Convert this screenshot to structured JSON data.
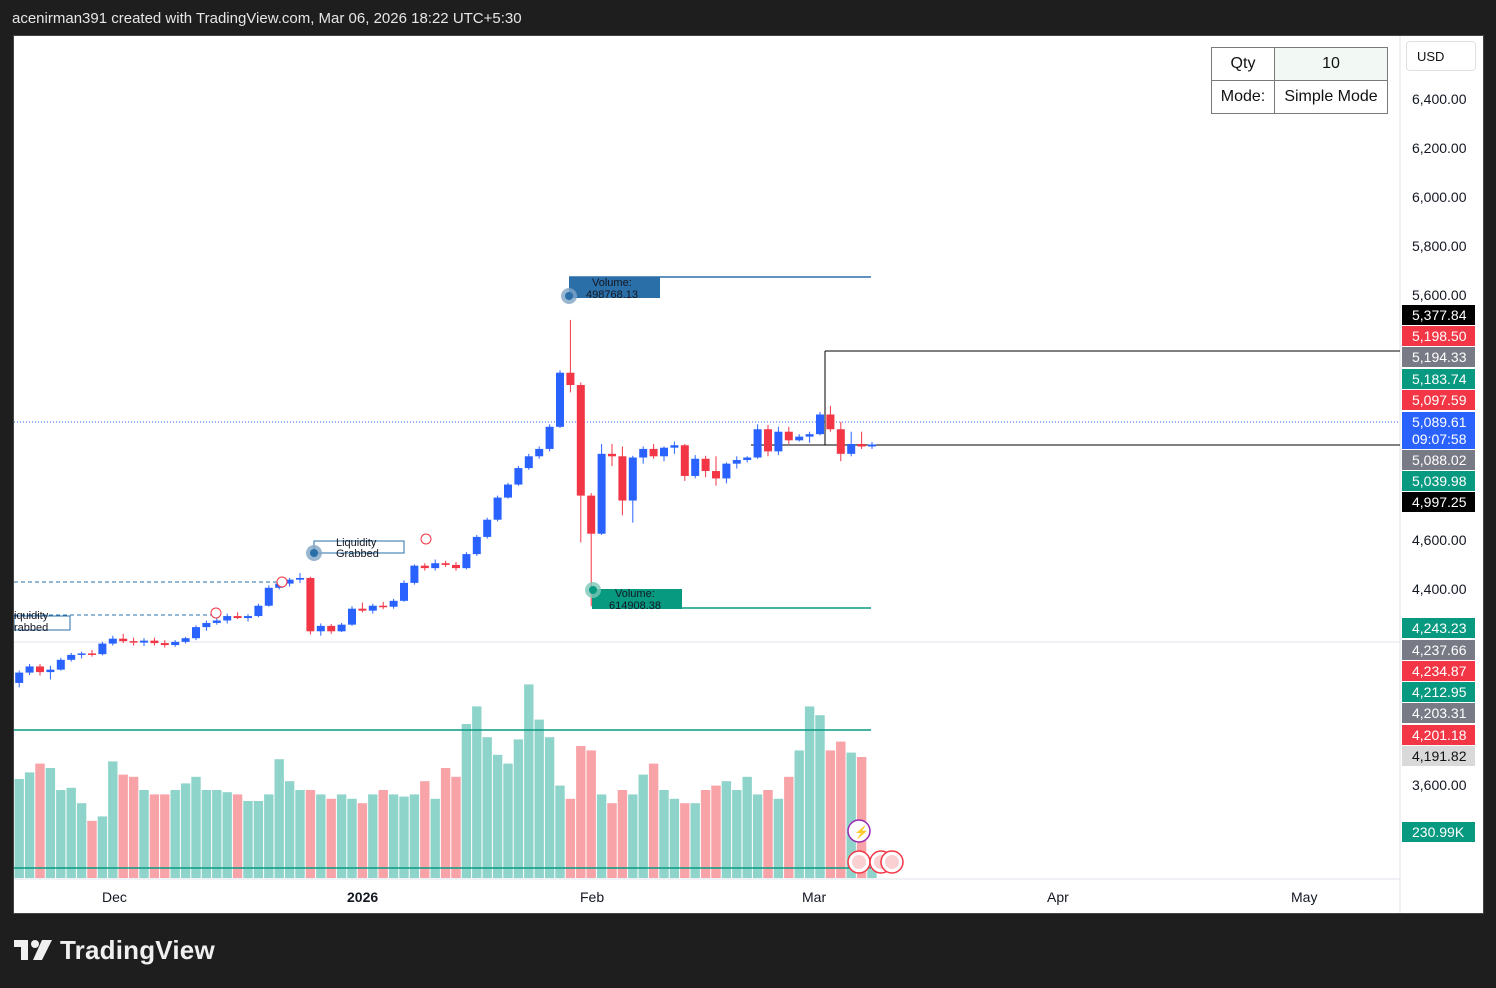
{
  "header": {
    "attribution": "acenirman391 created with TradingView.com, Mar 06, 2026 18:22 UTC+5:30"
  },
  "brand": {
    "name": "TradingView"
  },
  "currency": "USD",
  "order_panel": {
    "qty_label": "Qty",
    "qty_value": "10",
    "mode_label": "Mode:",
    "mode_value": "Simple Mode"
  },
  "colors": {
    "up": "#2962ff",
    "down": "#f23645",
    "vol_up": "#8fd4cb",
    "vol_down": "#f7a3a8",
    "green": "#089981",
    "blue_label": "#2a6fa8"
  },
  "chart_data": {
    "type": "candlestick",
    "x_labels": [
      "Dec",
      "2026",
      "Feb",
      "Mar",
      "Apr",
      "May"
    ],
    "y_ticks": [
      "6,400.00",
      "6,200.00",
      "6,000.00",
      "5,800.00",
      "5,600.00",
      "4,600.00",
      "4,400.00",
      "3,600.00"
    ],
    "price_labels": [
      {
        "text": "5,377.84",
        "bg": "#000000",
        "fg": "#ffffff"
      },
      {
        "text": "5,198.50",
        "bg": "#f23645",
        "fg": "#ffffff"
      },
      {
        "text": "5,194.33",
        "bg": "#787b86",
        "fg": "#ffffff"
      },
      {
        "text": "5,183.74",
        "bg": "#089981",
        "fg": "#ffffff"
      },
      {
        "text": "5,097.59",
        "bg": "#f23645",
        "fg": "#ffffff"
      },
      {
        "text": "5,089.61",
        "bg": "#2962ff",
        "fg": "#ffffff"
      },
      {
        "text": "09:07:58",
        "bg": "#2962ff",
        "fg": "#ffffff"
      },
      {
        "text": "5,088.02",
        "bg": "#787b86",
        "fg": "#ffffff"
      },
      {
        "text": "5,039.98",
        "bg": "#089981",
        "fg": "#ffffff"
      },
      {
        "text": "4,997.25",
        "bg": "#000000",
        "fg": "#ffffff"
      },
      {
        "text": "4,243.23",
        "bg": "#089981",
        "fg": "#ffffff"
      },
      {
        "text": "4,237.66",
        "bg": "#787b86",
        "fg": "#ffffff"
      },
      {
        "text": "4,234.87",
        "bg": "#f23645",
        "fg": "#ffffff"
      },
      {
        "text": "4,212.95",
        "bg": "#089981",
        "fg": "#ffffff"
      },
      {
        "text": "4,203.31",
        "bg": "#787b86",
        "fg": "#ffffff"
      },
      {
        "text": "4,201.18",
        "bg": "#f23645",
        "fg": "#ffffff"
      },
      {
        "text": "4,191.82",
        "bg": "#d9d9d9",
        "fg": "#111111"
      },
      {
        "text": "230.99K",
        "bg": "#089981",
        "fg": "#ffffff"
      }
    ],
    "annotations": {
      "volume_high_label": "Volume:",
      "volume_high_value": "498768.13",
      "volume_low_label": "Volume:",
      "volume_low_value": "614908.38",
      "liquidity_line1": "Liquidity",
      "liquidity_line2": "Grabbed",
      "liquidity_left_line1": "iquidity",
      "liquidity_left_line2": "rabbed"
    },
    "candles": [
      [
        4118,
        4168,
        4100,
        4160
      ],
      [
        4160,
        4195,
        4150,
        4185
      ],
      [
        4185,
        4195,
        4148,
        4162
      ],
      [
        4162,
        4188,
        4132,
        4172
      ],
      [
        4172,
        4220,
        4168,
        4212
      ],
      [
        4212,
        4240,
        4205,
        4232
      ],
      [
        4232,
        4245,
        4218,
        4238
      ],
      [
        4238,
        4252,
        4225,
        4235
      ],
      [
        4235,
        4285,
        4230,
        4278
      ],
      [
        4278,
        4310,
        4270,
        4298
      ],
      [
        4298,
        4318,
        4280,
        4288
      ],
      [
        4288,
        4302,
        4270,
        4282
      ],
      [
        4282,
        4300,
        4268,
        4290
      ],
      [
        4290,
        4302,
        4270,
        4280
      ],
      [
        4280,
        4292,
        4262,
        4272
      ],
      [
        4272,
        4292,
        4265,
        4285
      ],
      [
        4285,
        4305,
        4278,
        4300
      ],
      [
        4300,
        4352,
        4292,
        4345
      ],
      [
        4345,
        4372,
        4330,
        4362
      ],
      [
        4362,
        4382,
        4355,
        4372
      ],
      [
        4372,
        4400,
        4360,
        4390
      ],
      [
        4390,
        4405,
        4378,
        4382
      ],
      [
        4382,
        4398,
        4368,
        4390
      ],
      [
        4390,
        4440,
        4385,
        4432
      ],
      [
        4432,
        4515,
        4428,
        4505
      ],
      [
        4505,
        4530,
        4498,
        4522
      ],
      [
        4522,
        4545,
        4510,
        4538
      ],
      [
        4538,
        4565,
        4525,
        4545
      ],
      [
        4545,
        4550,
        4315,
        4328
      ],
      [
        4328,
        4360,
        4310,
        4350
      ],
      [
        4350,
        4358,
        4318,
        4328
      ],
      [
        4328,
        4362,
        4325,
        4355
      ],
      [
        4355,
        4430,
        4350,
        4420
      ],
      [
        4420,
        4445,
        4405,
        4412
      ],
      [
        4412,
        4440,
        4400,
        4432
      ],
      [
        4432,
        4448,
        4418,
        4428
      ],
      [
        4428,
        4460,
        4420,
        4452
      ],
      [
        4452,
        4535,
        4448,
        4525
      ],
      [
        4525,
        4600,
        4518,
        4595
      ],
      [
        4595,
        4605,
        4575,
        4585
      ],
      [
        4585,
        4620,
        4575,
        4605
      ],
      [
        4605,
        4615,
        4590,
        4598
      ],
      [
        4598,
        4610,
        4575,
        4585
      ],
      [
        4585,
        4650,
        4580,
        4642
      ],
      [
        4642,
        4720,
        4635,
        4712
      ],
      [
        4712,
        4790,
        4705,
        4782
      ],
      [
        4782,
        4880,
        4775,
        4872
      ],
      [
        4872,
        4932,
        4868,
        4925
      ],
      [
        4925,
        5000,
        4920,
        4992
      ],
      [
        4992,
        5050,
        4985,
        5040
      ],
      [
        5040,
        5080,
        5030,
        5070
      ],
      [
        5070,
        5170,
        5060,
        5160
      ],
      [
        5160,
        5390,
        5155,
        5380
      ],
      [
        5380,
        5595,
        5300,
        5330
      ],
      [
        5330,
        5340,
        4690,
        4880
      ],
      [
        4880,
        4890,
        4430,
        4725
      ],
      [
        4725,
        5090,
        4720,
        5050
      ],
      [
        5050,
        5090,
        5000,
        5040
      ],
      [
        5040,
        5080,
        4800,
        4860
      ],
      [
        4860,
        5042,
        4770,
        5035
      ],
      [
        5035,
        5080,
        5010,
        5070
      ],
      [
        5070,
        5090,
        5030,
        5040
      ],
      [
        5040,
        5080,
        5020,
        5075
      ],
      [
        5075,
        5100,
        5050,
        5085
      ],
      [
        5085,
        5090,
        4940,
        4960
      ],
      [
        4960,
        5045,
        4950,
        5030
      ],
      [
        5030,
        5042,
        4955,
        4980
      ],
      [
        4980,
        5040,
        4920,
        4950
      ],
      [
        4950,
        5015,
        4930,
        5010
      ],
      [
        5010,
        5040,
        4990,
        5025
      ],
      [
        5025,
        5040,
        5015,
        5035
      ],
      [
        5035,
        5170,
        5030,
        5150
      ],
      [
        5150,
        5168,
        5040,
        5060
      ],
      [
        5060,
        5160,
        5045,
        5140
      ],
      [
        5140,
        5160,
        5090,
        5105
      ],
      [
        5105,
        5130,
        5100,
        5120
      ],
      [
        5120,
        5140,
        5095,
        5130
      ],
      [
        5130,
        5220,
        5125,
        5210
      ],
      [
        5210,
        5245,
        5140,
        5150
      ],
      [
        5150,
        5180,
        5020,
        5050
      ],
      [
        5050,
        5140,
        5040,
        5090
      ],
      [
        5090,
        5140,
        5070,
        5080
      ],
      [
        5080,
        5098,
        5070,
        5088
      ]
    ],
    "volumes": [
      45,
      48,
      52,
      50,
      40,
      41,
      34,
      26,
      28,
      53,
      47,
      46,
      40,
      38,
      38,
      40,
      43,
      46,
      40,
      40,
      39,
      38,
      35,
      35,
      38,
      54,
      44,
      40,
      40,
      38,
      36,
      38,
      36,
      34,
      38,
      40,
      38,
      37,
      38,
      44,
      36,
      50,
      46,
      70,
      78,
      64,
      56,
      52,
      63,
      88,
      72,
      64,
      42,
      36,
      60,
      58,
      38,
      34,
      40,
      38,
      47,
      52,
      40,
      36,
      34,
      34,
      40,
      42,
      44,
      40,
      46,
      38,
      40,
      36,
      46,
      58,
      78,
      74,
      58,
      62,
      57,
      55,
      4
    ]
  }
}
